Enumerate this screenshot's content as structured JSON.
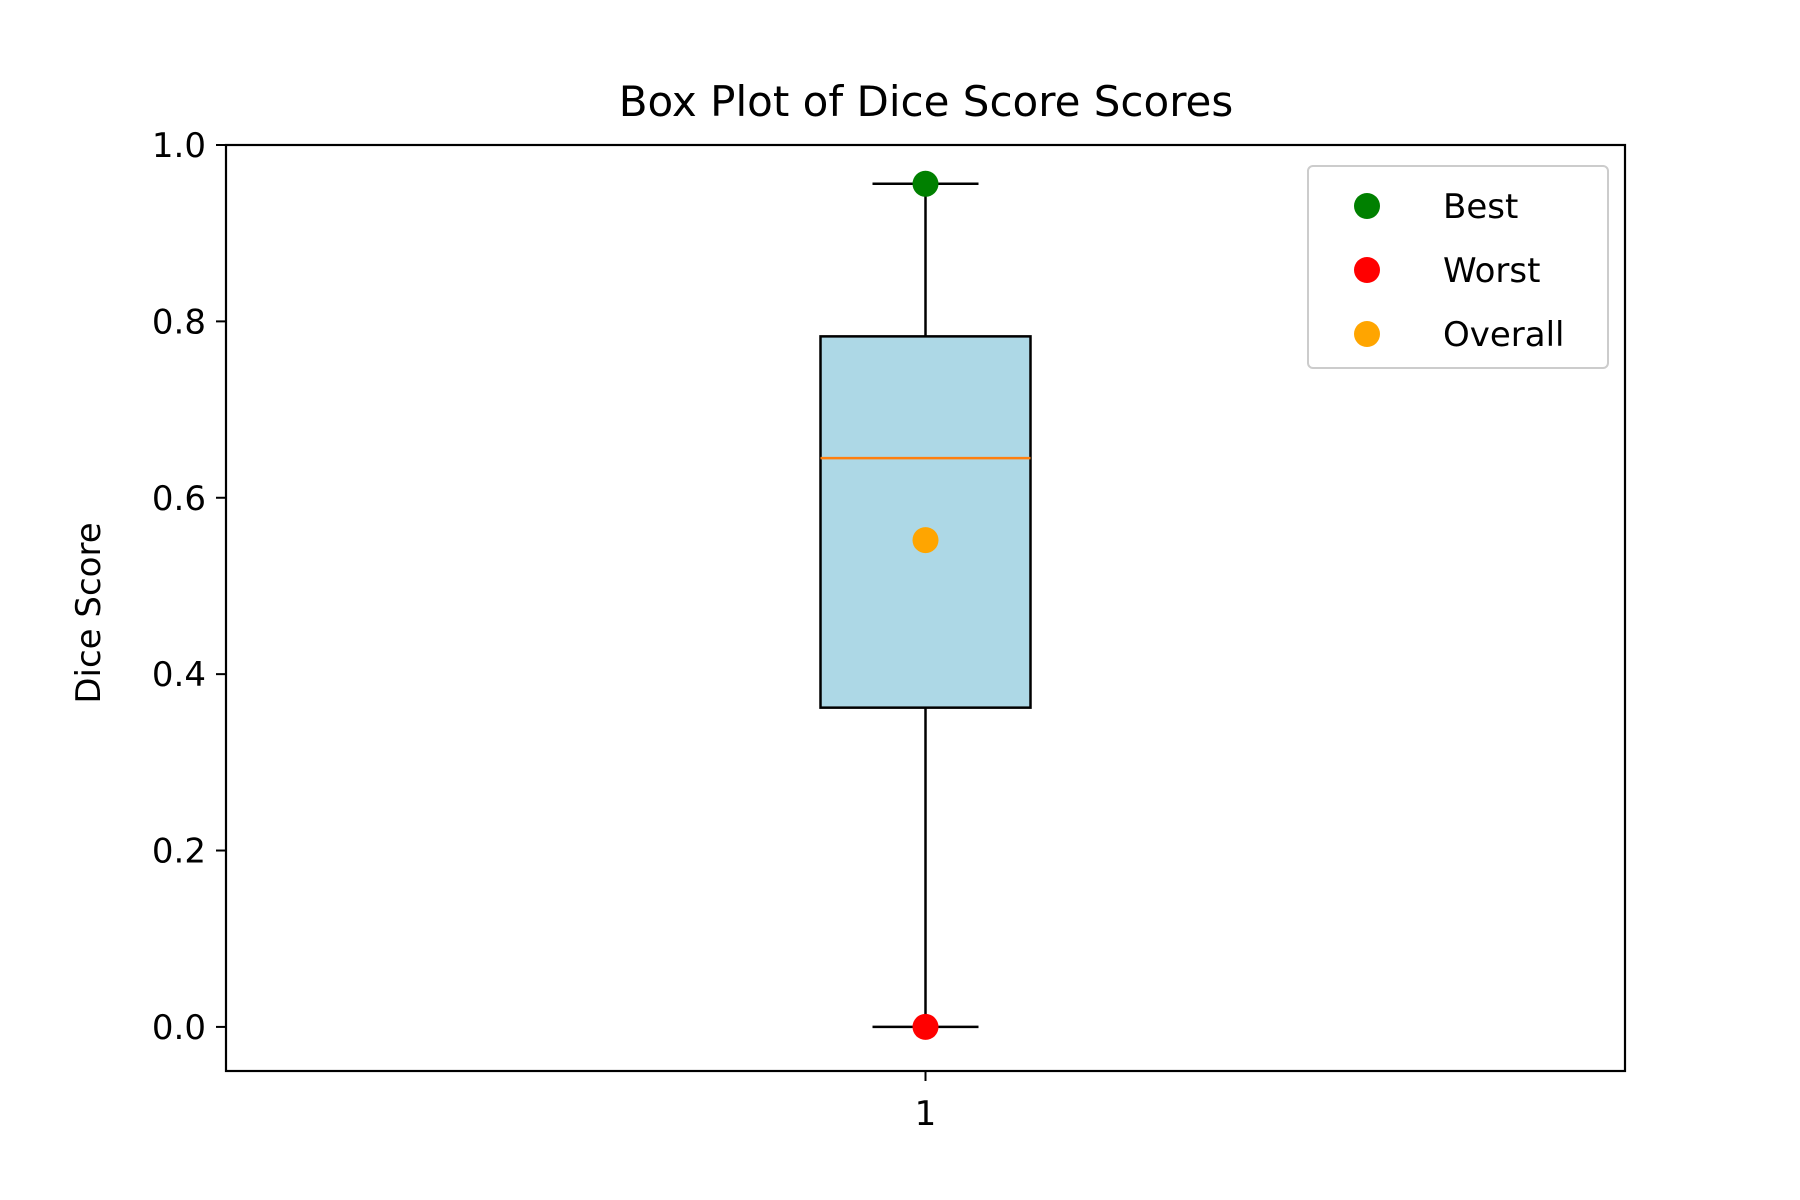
{
  "chart_data": {
    "type": "box",
    "title": "Box Plot of Dice Score Scores",
    "xlabel": "",
    "ylabel": "Dice Score",
    "ylim": [
      -0.05,
      1.0
    ],
    "yticks": [
      0.0,
      0.2,
      0.4,
      0.6,
      0.8,
      1.0
    ],
    "ytick_labels": [
      "0.0",
      "0.2",
      "0.4",
      "0.6",
      "0.8",
      "1.0"
    ],
    "categories": [
      "1"
    ],
    "box": {
      "whisker_low": 0.0,
      "q1": 0.362,
      "median": 0.645,
      "q3": 0.783,
      "whisker_high": 0.956,
      "fill": "#add8e6",
      "median_color": "#ff7f0e"
    },
    "points": [
      {
        "name": "Best",
        "x": "1",
        "y": 0.956,
        "color": "#008000"
      },
      {
        "name": "Worst",
        "x": "1",
        "y": 0.0,
        "color": "#ff0000"
      },
      {
        "name": "Overall",
        "x": "1",
        "y": 0.552,
        "color": "#ffa500"
      }
    ],
    "grid": false,
    "legend_position": "top-right"
  }
}
